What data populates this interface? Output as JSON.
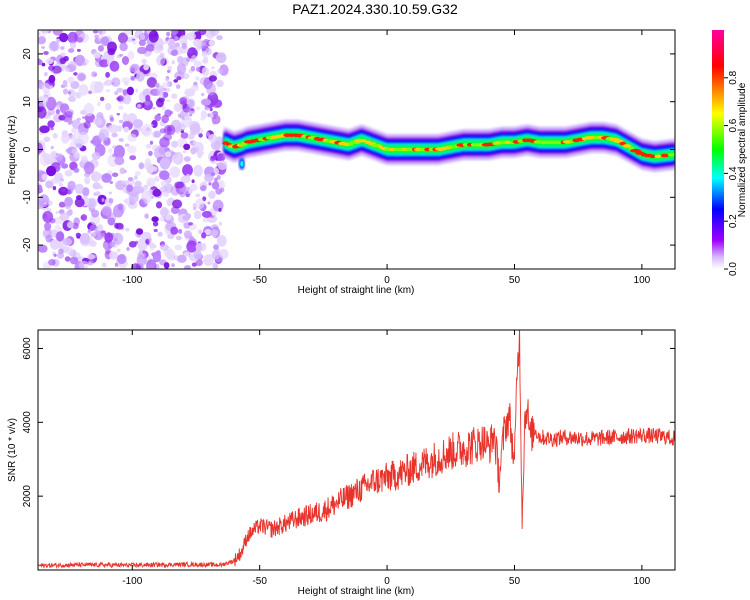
{
  "title": "PAZ1.2024.330.10.59.G32",
  "chart_data": [
    {
      "type": "heatmap",
      "xlabel": "Height of straight line (km)",
      "ylabel": "Frequency (Hz)",
      "xlim": [
        -137,
        113
      ],
      "ylim": [
        -25,
        25
      ],
      "x_ticks": [
        -100,
        -50,
        0,
        50,
        100
      ],
      "y_ticks": [
        -20,
        -10,
        0,
        10,
        20
      ],
      "x_tick_labels": [
        "-100",
        "-50",
        "0",
        "50",
        "100"
      ],
      "y_tick_labels": [
        "-20",
        "-10",
        "0",
        "10",
        "20"
      ],
      "colorbar": {
        "label": "Normalized spectral amplitude",
        "range": [
          0,
          1
        ],
        "ticks": [
          0.0,
          0.2,
          0.4,
          0.6,
          0.8
        ],
        "tick_labels": [
          "0.0",
          "0.2",
          "0.4",
          "0.6",
          "0.8"
        ],
        "colors": [
          "#ffffff",
          "#a000ff",
          "#0000ff",
          "#00ffff",
          "#00ff00",
          "#ffff00",
          "#ff0000",
          "#ff00a0"
        ]
      },
      "noise_region_x": [
        -137,
        -64
      ],
      "signal_trace": {
        "x": [
          -64,
          -60,
          -57,
          -55,
          -50,
          -45,
          -40,
          -35,
          -30,
          -25,
          -20,
          -15,
          -10,
          -5,
          0,
          5,
          10,
          15,
          20,
          25,
          30,
          35,
          40,
          45,
          50,
          55,
          60,
          65,
          70,
          75,
          80,
          85,
          90,
          95,
          100,
          105,
          113
        ],
        "y": [
          1.5,
          0.5,
          1.0,
          1.5,
          2.0,
          2.5,
          3.0,
          3.0,
          2.5,
          2.0,
          1.5,
          1.0,
          2.0,
          1.0,
          0.0,
          0.0,
          0.0,
          0.0,
          0.0,
          0.5,
          1.0,
          1.0,
          1.0,
          1.5,
          1.5,
          2.0,
          1.5,
          1.5,
          1.5,
          2.0,
          2.5,
          2.5,
          2.0,
          0.5,
          -1.0,
          -1.5,
          -1.0
        ]
      }
    },
    {
      "type": "line",
      "xlabel": "Height of straight line (km)",
      "ylabel": "SNR (10 * v/v)",
      "xlim": [
        -137,
        113
      ],
      "ylim": [
        0,
        6500
      ],
      "x_ticks": [
        -100,
        -50,
        0,
        50,
        100
      ],
      "y_ticks": [
        2000,
        4000,
        6000
      ],
      "x_tick_labels": [
        "-100",
        "-50",
        "0",
        "50",
        "100"
      ],
      "y_tick_labels": [
        "2000",
        "4000",
        "6000"
      ],
      "line_color": "#e8322a",
      "series": [
        {
          "x": [
            -137,
            -120,
            -100,
            -80,
            -65,
            -60,
            -57,
            -55,
            -52,
            -50,
            -45,
            -40,
            -35,
            -30,
            -25,
            -20,
            -15,
            -10,
            -5,
            0,
            5,
            10,
            15,
            20,
            25,
            30,
            35,
            38,
            40,
            42,
            44,
            46,
            48,
            50,
            51,
            52,
            53,
            54,
            55,
            56,
            58,
            60,
            65,
            70,
            80,
            90,
            100,
            110,
            113
          ],
          "y": [
            120,
            140,
            130,
            150,
            140,
            250,
            500,
            900,
            1100,
            1200,
            1100,
            1250,
            1400,
            1500,
            1600,
            1800,
            2000,
            2200,
            2400,
            2500,
            2600,
            2750,
            2900,
            3050,
            3200,
            3300,
            3400,
            3500,
            3300,
            3700,
            2500,
            3800,
            4200,
            2800,
            5400,
            6300,
            1400,
            4000,
            4500,
            3600,
            3800,
            3600,
            3550,
            3600,
            3550,
            3600,
            3650,
            3600,
            3550
          ]
        }
      ]
    }
  ]
}
